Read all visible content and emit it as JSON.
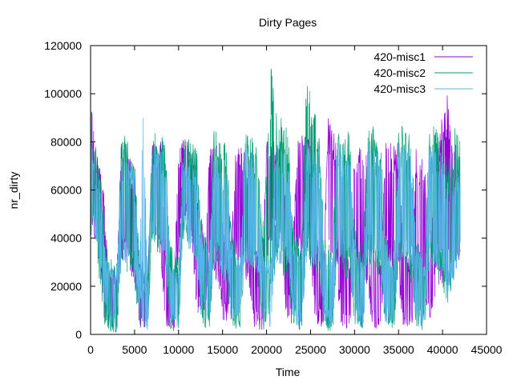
{
  "chart_data": {
    "type": "line",
    "title": "Dirty Pages",
    "xlabel": "Time",
    "ylabel": "nr_dirty",
    "xlim": [
      0,
      45000
    ],
    "ylim": [
      0,
      120000
    ],
    "x_ticks": [
      0,
      5000,
      10000,
      15000,
      20000,
      25000,
      30000,
      35000,
      40000,
      45000
    ],
    "y_ticks": [
      0,
      20000,
      40000,
      60000,
      80000,
      100000,
      120000
    ],
    "grid": false,
    "legend_position": "top-right",
    "series": [
      {
        "name": "420-misc1",
        "color": "#9400d3",
        "x_end": 42000,
        "envelope": [
          [
            0,
            45000,
            100000
          ],
          [
            500,
            40000,
            80000
          ],
          [
            1000,
            30000,
            70000
          ],
          [
            1500,
            5000,
            60000
          ],
          [
            2000,
            3000,
            30000
          ],
          [
            3000,
            1000,
            25000
          ],
          [
            3500,
            30000,
            80000
          ],
          [
            5000,
            20000,
            70000
          ],
          [
            5500,
            3000,
            30000
          ],
          [
            6500,
            1000,
            25000
          ],
          [
            7000,
            40000,
            80000
          ],
          [
            8000,
            30000,
            80000
          ],
          [
            8500,
            3000,
            35000
          ],
          [
            9500,
            1000,
            25000
          ],
          [
            10000,
            30000,
            75000
          ],
          [
            10500,
            50000,
            82000
          ],
          [
            11500,
            40000,
            80000
          ],
          [
            12000,
            10000,
            60000
          ],
          [
            13000,
            3000,
            40000
          ],
          [
            13500,
            30000,
            80000
          ],
          [
            14500,
            20000,
            80000
          ],
          [
            15000,
            5000,
            50000
          ],
          [
            16000,
            3000,
            40000
          ],
          [
            16500,
            30000,
            80000
          ],
          [
            18000,
            20000,
            75000
          ],
          [
            18500,
            3000,
            40000
          ],
          [
            19500,
            1000,
            30000
          ],
          [
            20000,
            30000,
            80000
          ],
          [
            21500,
            40000,
            82000
          ],
          [
            22000,
            10000,
            60000
          ],
          [
            23000,
            2000,
            40000
          ],
          [
            23500,
            30000,
            85000
          ],
          [
            25000,
            30000,
            85000
          ],
          [
            25500,
            5000,
            50000
          ],
          [
            26500,
            2000,
            35000
          ],
          [
            27000,
            30000,
            92000
          ],
          [
            28000,
            20000,
            80000
          ],
          [
            28500,
            3000,
            45000
          ],
          [
            29500,
            1000,
            30000
          ],
          [
            30000,
            25000,
            80000
          ],
          [
            31500,
            20000,
            75000
          ],
          [
            32000,
            3000,
            40000
          ],
          [
            33000,
            1000,
            30000
          ],
          [
            33500,
            30000,
            80000
          ],
          [
            35000,
            20000,
            80000
          ],
          [
            35500,
            3000,
            40000
          ],
          [
            36500,
            1000,
            30000
          ],
          [
            37000,
            20000,
            80000
          ],
          [
            38000,
            10000,
            70000
          ],
          [
            38500,
            5000,
            45000
          ],
          [
            39500,
            20000,
            80000
          ],
          [
            40500,
            20000,
            105000
          ],
          [
            41000,
            30000,
            80000
          ],
          [
            42000,
            30000,
            70000
          ]
        ]
      },
      {
        "name": "420-misc2",
        "color": "#009e73",
        "x_end": 42000,
        "envelope": [
          [
            0,
            40000,
            95000
          ],
          [
            500,
            40000,
            80000
          ],
          [
            1000,
            20000,
            70000
          ],
          [
            1500,
            5000,
            55000
          ],
          [
            2000,
            1000,
            35000
          ],
          [
            3000,
            500,
            30000
          ],
          [
            3500,
            30000,
            85000
          ],
          [
            5000,
            20000,
            75000
          ],
          [
            5500,
            2000,
            35000
          ],
          [
            6500,
            500,
            25000
          ],
          [
            7000,
            40000,
            85000
          ],
          [
            8500,
            30000,
            82000
          ],
          [
            9000,
            2000,
            40000
          ],
          [
            10000,
            1000,
            30000
          ],
          [
            10500,
            40000,
            82000
          ],
          [
            12000,
            30000,
            80000
          ],
          [
            12500,
            5000,
            50000
          ],
          [
            13500,
            1000,
            35000
          ],
          [
            14000,
            30000,
            85000
          ],
          [
            15500,
            20000,
            80000
          ],
          [
            16000,
            3000,
            45000
          ],
          [
            17000,
            500,
            30000
          ],
          [
            17500,
            30000,
            85000
          ],
          [
            19000,
            20000,
            80000
          ],
          [
            19500,
            2000,
            40000
          ],
          [
            20500,
            500,
            120000
          ],
          [
            21000,
            30000,
            95000
          ],
          [
            22500,
            20000,
            85000
          ],
          [
            23000,
            3000,
            45000
          ],
          [
            24000,
            1000,
            35000
          ],
          [
            24500,
            30000,
            115000
          ],
          [
            26000,
            20000,
            85000
          ],
          [
            26500,
            2000,
            45000
          ],
          [
            27500,
            500,
            35000
          ],
          [
            28000,
            30000,
            90000
          ],
          [
            29500,
            20000,
            85000
          ],
          [
            30000,
            3000,
            45000
          ],
          [
            31000,
            1000,
            35000
          ],
          [
            31500,
            30000,
            90000
          ],
          [
            33000,
            20000,
            85000
          ],
          [
            33500,
            2000,
            40000
          ],
          [
            34500,
            500,
            35000
          ],
          [
            35000,
            30000,
            90000
          ],
          [
            36500,
            20000,
            85000
          ],
          [
            37000,
            3000,
            40000
          ],
          [
            38000,
            1000,
            30000
          ],
          [
            38500,
            30000,
            88000
          ],
          [
            40000,
            20000,
            85000
          ],
          [
            40500,
            10000,
            70000
          ],
          [
            41500,
            25000,
            88000
          ],
          [
            42000,
            30000,
            80000
          ]
        ]
      },
      {
        "name": "420-misc3",
        "color": "#56b4e9",
        "x_end": 42000,
        "envelope": [
          [
            0,
            45000,
            90000
          ],
          [
            500,
            40000,
            70000
          ],
          [
            1000,
            30000,
            65000
          ],
          [
            1500,
            10000,
            40000
          ],
          [
            2000,
            3000,
            30000
          ],
          [
            3000,
            1000,
            28000
          ],
          [
            3500,
            30000,
            75000
          ],
          [
            5000,
            25000,
            70000
          ],
          [
            5500,
            5000,
            30000
          ],
          [
            6000,
            3000,
            103000
          ],
          [
            6500,
            1000,
            25000
          ],
          [
            7000,
            40000,
            80000
          ],
          [
            8500,
            30000,
            75000
          ],
          [
            9000,
            5000,
            35000
          ],
          [
            10000,
            2000,
            25000
          ],
          [
            10500,
            40000,
            75000
          ],
          [
            12000,
            30000,
            70000
          ],
          [
            12500,
            10000,
            45000
          ],
          [
            13500,
            3000,
            35000
          ],
          [
            14000,
            30000,
            75000
          ],
          [
            15500,
            20000,
            70000
          ],
          [
            16000,
            5000,
            40000
          ],
          [
            17000,
            2000,
            30000
          ],
          [
            17500,
            30000,
            80000
          ],
          [
            19000,
            25000,
            75000
          ],
          [
            19500,
            5000,
            35000
          ],
          [
            20500,
            2000,
            30000
          ],
          [
            21000,
            30000,
            80000
          ],
          [
            22500,
            25000,
            75000
          ],
          [
            23000,
            5000,
            40000
          ],
          [
            24000,
            2000,
            30000
          ],
          [
            24500,
            30000,
            80000
          ],
          [
            26000,
            25000,
            75000
          ],
          [
            26500,
            5000,
            40000
          ],
          [
            27500,
            2000,
            30000
          ],
          [
            28000,
            30000,
            80000
          ],
          [
            29500,
            25000,
            75000
          ],
          [
            30000,
            5000,
            40000
          ],
          [
            31000,
            2000,
            30000
          ],
          [
            31500,
            30000,
            80000
          ],
          [
            33000,
            25000,
            75000
          ],
          [
            33500,
            5000,
            40000
          ],
          [
            34500,
            2000,
            30000
          ],
          [
            35000,
            30000,
            80000
          ],
          [
            36500,
            25000,
            75000
          ],
          [
            37000,
            5000,
            40000
          ],
          [
            38000,
            2000,
            30000
          ],
          [
            38500,
            30000,
            80000
          ],
          [
            40000,
            25000,
            75000
          ],
          [
            40500,
            15000,
            65000
          ],
          [
            42000,
            30000,
            70000
          ]
        ]
      }
    ]
  }
}
